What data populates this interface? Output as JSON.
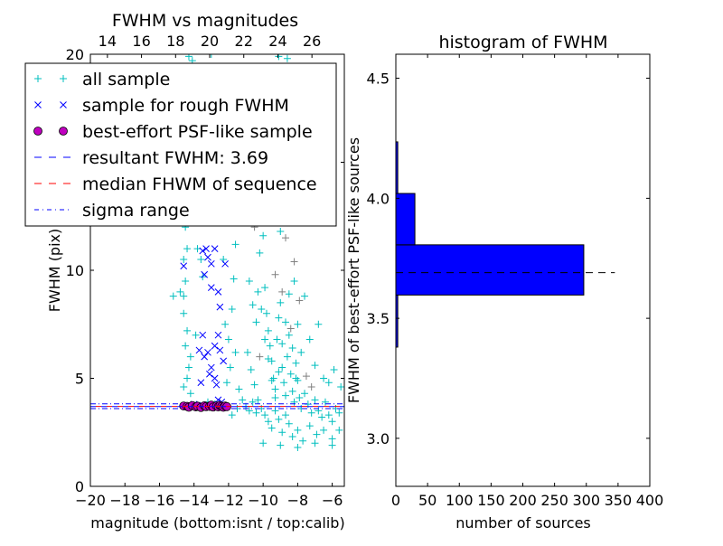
{
  "chart_data": [
    {
      "type": "scatter",
      "title": "FWHM vs magnitudes",
      "xlabel": "magnitude (bottom:isnt / top:calib)",
      "ylabel": "FWHM (pix)",
      "xlim": [
        -20,
        -5.3
      ],
      "ylim": [
        0,
        20
      ],
      "top_xlim": [
        13.0,
        27.9
      ],
      "xticks": [
        "−20",
        "−18",
        "−16",
        "−14",
        "−12",
        "−10",
        "−8",
        "−6"
      ],
      "xtick_values": [
        -20,
        -18,
        -16,
        -14,
        -12,
        -10,
        -8,
        -6
      ],
      "top_xticks": [
        "14",
        "16",
        "18",
        "20",
        "22",
        "24",
        "26"
      ],
      "top_xtick_values": [
        14,
        16,
        18,
        20,
        22,
        24,
        26
      ],
      "yticks": [
        "0",
        "5",
        "10",
        "15",
        "20"
      ],
      "ytick_values": [
        0,
        5,
        10,
        15,
        20
      ],
      "legend_position": "top-left",
      "legend": [
        "all sample",
        "sample for rough FWHM",
        "best-effort PSF-like sample",
        "resultant FWHM: 3.69",
        "median FHWM of sequence",
        "sigma range"
      ],
      "colors": {
        "all": "#00bfbf",
        "grey": "#808080",
        "rough": "#0000ff",
        "best": "#bf00bf",
        "resultant": "#0000ff",
        "median": "#ff0000",
        "sigma": "#0000ff"
      },
      "resultant_fwhm": 3.69,
      "median_fwhm": 3.7,
      "sigma_range": [
        3.6,
        3.82
      ],
      "background_points": [
        [
          -10.5,
          12.0
        ],
        [
          -9.3,
          9.8
        ],
        [
          -8.7,
          11.5
        ],
        [
          -7.5,
          5.1
        ],
        [
          -8.2,
          10.4
        ],
        [
          -8.9,
          9.0
        ],
        [
          -9.8,
          13.5
        ],
        [
          -7.9,
          8.6
        ],
        [
          -8.4,
          7.3
        ],
        [
          -10.2,
          6.0
        ],
        [
          -9.1,
          12.8
        ],
        [
          -7.2,
          4.6
        ]
      ],
      "all_sample": [
        [
          -14.6,
          8.8
        ],
        [
          -14.5,
          9.5
        ],
        [
          -14.4,
          7.2
        ],
        [
          -14.5,
          6.5
        ],
        [
          -14.3,
          5.5
        ],
        [
          -14.4,
          5.0
        ],
        [
          -14.6,
          4.6
        ],
        [
          -14.2,
          4.3
        ],
        [
          -14.5,
          12.0
        ],
        [
          -14.3,
          13.5
        ],
        [
          -14.4,
          11.0
        ],
        [
          -14.6,
          8.0
        ],
        [
          -14.8,
          9.0
        ],
        [
          -15.2,
          8.8
        ],
        [
          -14.3,
          19.9
        ],
        [
          -14.1,
          19.7
        ],
        [
          -14.0,
          14.5
        ],
        [
          -13.8,
          11.0
        ],
        [
          -13.6,
          10.5
        ],
        [
          -13.5,
          9.7
        ],
        [
          -13.9,
          7.0
        ],
        [
          -14.2,
          6.0
        ],
        [
          -14.5,
          15.5
        ],
        [
          -14.4,
          17.0
        ],
        [
          -14.6,
          10.5
        ],
        [
          -12.2,
          7.5
        ],
        [
          -12.0,
          6.8
        ],
        [
          -11.8,
          8.2
        ],
        [
          -11.9,
          5.5
        ],
        [
          -12.1,
          4.8
        ],
        [
          -11.7,
          9.6
        ],
        [
          -11.6,
          11.2
        ],
        [
          -11.9,
          12.5
        ],
        [
          -11.5,
          13.0
        ],
        [
          -12.3,
          10.5
        ],
        [
          -11.6,
          6.2
        ],
        [
          -11.4,
          4.5
        ],
        [
          -12.4,
          13.8
        ],
        [
          -12.0,
          14.6
        ],
        [
          -11.3,
          15.5
        ],
        [
          -11.0,
          16.8
        ],
        [
          -10.8,
          9.5
        ],
        [
          -10.6,
          8.4
        ],
        [
          -10.4,
          7.6
        ],
        [
          -10.2,
          10.8
        ],
        [
          -10.0,
          11.6
        ],
        [
          -9.9,
          9.2
        ],
        [
          -9.8,
          8.0
        ],
        [
          -9.7,
          7.2
        ],
        [
          -9.6,
          6.5
        ],
        [
          -9.5,
          5.8
        ],
        [
          -9.4,
          5.0
        ],
        [
          -9.3,
          4.5
        ],
        [
          -9.2,
          6.8
        ],
        [
          -9.1,
          7.8
        ],
        [
          -9.0,
          8.5
        ],
        [
          -8.9,
          5.5
        ],
        [
          -8.8,
          4.8
        ],
        [
          -8.7,
          4.2
        ],
        [
          -8.6,
          6.0
        ],
        [
          -8.5,
          7.0
        ],
        [
          -8.4,
          5.2
        ],
        [
          -8.3,
          4.4
        ],
        [
          -8.2,
          3.9
        ],
        [
          -8.1,
          5.7
        ],
        [
          -8.0,
          4.9
        ],
        [
          -7.9,
          4.1
        ],
        [
          -7.8,
          3.6
        ],
        [
          -7.6,
          4.3
        ],
        [
          -7.4,
          3.8
        ],
        [
          -7.2,
          3.4
        ],
        [
          -7.0,
          4.0
        ],
        [
          -6.8,
          3.5
        ],
        [
          -6.6,
          3.2
        ],
        [
          -6.4,
          3.9
        ],
        [
          -6.2,
          3.3
        ],
        [
          -6.0,
          3.0
        ],
        [
          -5.8,
          3.6
        ],
        [
          -5.6,
          3.4
        ],
        [
          -5.5,
          4.6
        ],
        [
          -10.9,
          6.2
        ],
        [
          -10.7,
          5.4
        ],
        [
          -10.5,
          4.7
        ],
        [
          -10.3,
          4.0
        ],
        [
          -10.1,
          3.6
        ],
        [
          -9.9,
          3.3
        ],
        [
          -9.7,
          3.0
        ],
        [
          -9.5,
          2.7
        ],
        [
          -9.3,
          3.5
        ],
        [
          -9.1,
          3.1
        ],
        [
          -8.9,
          2.5
        ],
        [
          -8.7,
          3.3
        ],
        [
          -8.5,
          2.9
        ],
        [
          -8.3,
          2.3
        ],
        [
          -8.0,
          2.6
        ],
        [
          -7.7,
          2.1
        ],
        [
          -7.3,
          2.8
        ],
        [
          -6.9,
          2.4
        ],
        [
          -6.5,
          2.6
        ],
        [
          -6.0,
          2.2
        ],
        [
          -9.6,
          12.5
        ],
        [
          -9.4,
          13.6
        ],
        [
          -9.2,
          14.8
        ],
        [
          -9.0,
          11.8
        ],
        [
          -9.8,
          15.5
        ],
        [
          -9.5,
          16.5
        ],
        [
          -9.3,
          17.8
        ],
        [
          -9.1,
          19.9
        ],
        [
          -8.6,
          19.8
        ],
        [
          -8.8,
          15.9
        ],
        [
          -8.4,
          13.0
        ],
        [
          -8.2,
          9.5
        ],
        [
          -8.0,
          7.5
        ],
        [
          -7.8,
          6.2
        ],
        [
          -7.6,
          8.8
        ],
        [
          -7.3,
          6.8
        ],
        [
          -7.0,
          5.6
        ],
        [
          -6.8,
          7.5
        ],
        [
          -6.5,
          5.0
        ],
        [
          -6.2,
          4.8
        ],
        [
          -5.9,
          5.4
        ],
        [
          -5.6,
          2.6
        ],
        [
          -10.3,
          9.0
        ],
        [
          -10.1,
          8.2
        ],
        [
          -9.9,
          6.8
        ],
        [
          -9.7,
          5.9
        ],
        [
          -9.5,
          4.9
        ],
        [
          -9.3,
          4.1
        ],
        [
          -9.1,
          5.3
        ],
        [
          -8.9,
          6.6
        ],
        [
          -8.7,
          7.6
        ],
        [
          -8.5,
          8.9
        ],
        [
          -8.3,
          6.4
        ],
        [
          -8.1,
          5.0
        ],
        [
          -11.2,
          4.0
        ],
        [
          -11.0,
          3.7
        ],
        [
          -10.8,
          3.5
        ],
        [
          -10.6,
          3.9
        ],
        [
          -10.4,
          3.4
        ],
        [
          -12.8,
          3.8
        ],
        [
          -13.2,
          3.9
        ],
        [
          -11.5,
          3.6
        ],
        [
          -11.8,
          3.3
        ],
        [
          -10.0,
          2.0
        ],
        [
          -9.0,
          1.9
        ],
        [
          -8.0,
          1.8
        ],
        [
          -7.0,
          2.0
        ],
        [
          -6.0,
          1.9
        ],
        [
          -13.0,
          20.0
        ],
        [
          -12.5,
          18.5
        ],
        [
          -11.2,
          18.9
        ],
        [
          -8.2,
          18.2
        ],
        [
          -7.4,
          17.0
        ],
        [
          -14.9,
          14.0
        ]
      ],
      "rough_sample": [
        [
          -14.6,
          10.2
        ],
        [
          -13.5,
          10.9
        ],
        [
          -13.3,
          11.0
        ],
        [
          -13.2,
          10.6
        ],
        [
          -13.0,
          10.3
        ],
        [
          -12.8,
          11.0
        ],
        [
          -13.4,
          9.8
        ],
        [
          -13.0,
          9.2
        ],
        [
          -12.6,
          9.0
        ],
        [
          -13.5,
          7.0
        ],
        [
          -13.7,
          6.3
        ],
        [
          -13.4,
          6.0
        ],
        [
          -13.2,
          6.2
        ],
        [
          -12.8,
          6.5
        ],
        [
          -12.6,
          7.0
        ],
        [
          -12.5,
          6.3
        ],
        [
          -13.0,
          5.5
        ],
        [
          -13.1,
          5.2
        ],
        [
          -12.8,
          5.0
        ],
        [
          -12.7,
          4.7
        ],
        [
          -12.3,
          5.8
        ],
        [
          -12.5,
          8.3
        ],
        [
          -12.2,
          10.3
        ],
        [
          -13.6,
          4.8
        ],
        [
          -12.6,
          4.0
        ],
        [
          -12.4,
          3.9
        ],
        [
          -14.0,
          3.8
        ],
        [
          -13.5,
          3.75
        ],
        [
          -12.9,
          3.8
        ],
        [
          -12.2,
          3.7
        ]
      ],
      "best_effort_sample": [
        [
          -14.6,
          3.72
        ],
        [
          -14.4,
          3.7
        ],
        [
          -14.3,
          3.66
        ],
        [
          -14.1,
          3.74
        ],
        [
          -13.9,
          3.68
        ],
        [
          -13.8,
          3.71
        ],
        [
          -13.6,
          3.65
        ],
        [
          -13.4,
          3.73
        ],
        [
          -13.3,
          3.69
        ],
        [
          -13.1,
          3.7
        ],
        [
          -13.0,
          3.76
        ],
        [
          -12.9,
          3.67
        ],
        [
          -12.7,
          3.72
        ],
        [
          -12.6,
          3.68
        ],
        [
          -12.5,
          3.74
        ],
        [
          -12.4,
          3.7
        ],
        [
          -12.3,
          3.66
        ],
        [
          -12.2,
          3.72
        ],
        [
          -12.1,
          3.69
        ]
      ]
    },
    {
      "type": "bar",
      "orientation": "horizontal",
      "title": "histogram of FWHM",
      "xlabel": "number of sources",
      "ylabel": "FWHM of best-effort PSF-like sources",
      "xlim": [
        0,
        400
      ],
      "ylim": [
        2.8,
        4.6
      ],
      "xticks": [
        "0",
        "50",
        "100",
        "150",
        "200",
        "250",
        "300",
        "350",
        "400"
      ],
      "xtick_values": [
        0,
        50,
        100,
        150,
        200,
        250,
        300,
        350,
        400
      ],
      "yticks": [
        "3.0",
        "3.5",
        "4.0",
        "4.5"
      ],
      "ytick_values": [
        3.0,
        3.5,
        4.0,
        4.5
      ],
      "bins": [
        [
          3.38,
          3.597
        ],
        [
          3.597,
          3.806
        ],
        [
          3.806,
          4.02
        ],
        [
          4.02,
          4.235
        ]
      ],
      "counts": [
        3,
        296,
        30,
        3
      ],
      "bar_color": "#0000ff",
      "resultant_fwhm": 3.69,
      "resultant_line_extent": 345
    }
  ]
}
